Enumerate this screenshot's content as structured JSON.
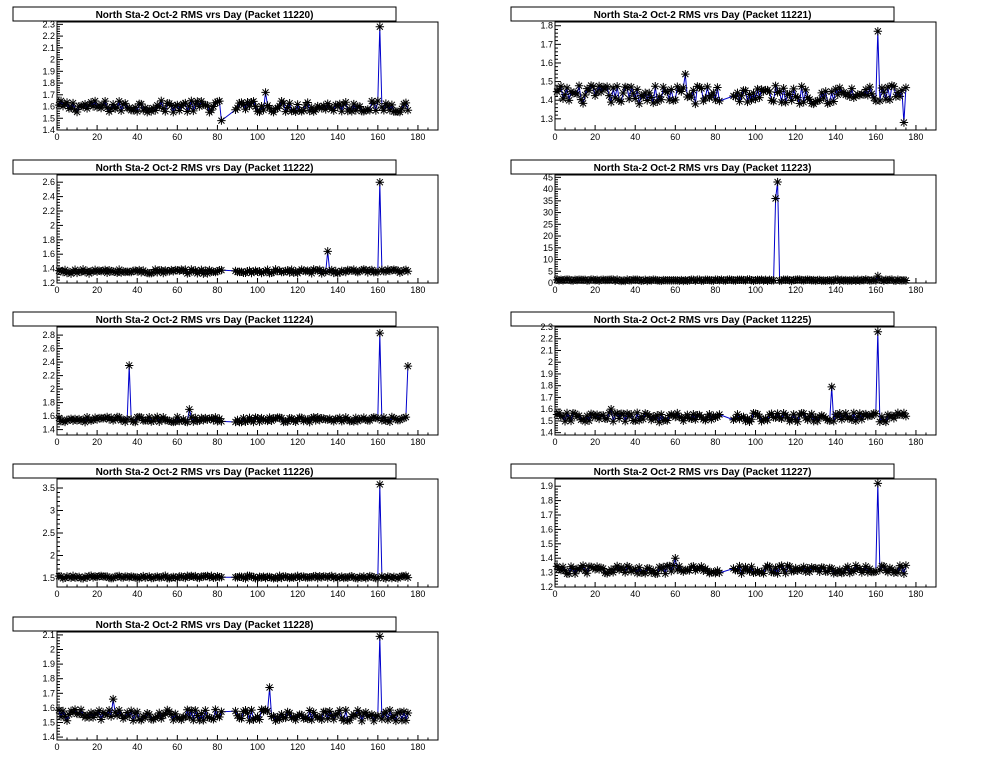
{
  "page": {
    "background": "#ffffff",
    "line_color": "#0000cc",
    "marker_color": "#000000"
  },
  "chart_data": [
    {
      "type": "line",
      "title": "North Sta-2 Oct-2 RMS vrs Day (Packet 11220)",
      "xlim": [
        0,
        190
      ],
      "ylim": [
        1.4,
        2.32
      ],
      "xticks": [
        0,
        20,
        40,
        60,
        80,
        100,
        120,
        140,
        160,
        180
      ],
      "yticks": [
        1.4,
        1.5,
        1.6,
        1.7,
        1.8,
        1.9,
        2,
        2.1,
        2.2,
        2.3
      ],
      "ytick_labels": [
        "1.4",
        "1.5",
        "1.6",
        "1.7",
        "1.8",
        "1.9",
        "2",
        "2.1",
        "2.2",
        "2.3"
      ],
      "series": [
        {
          "baseline": 1.6,
          "noise": 0.05,
          "spikes": [
            {
              "x": 161,
              "y": 2.28
            },
            {
              "x": 82,
              "y": 1.48
            },
            {
              "x": 104,
              "y": 1.72
            }
          ]
        }
      ]
    },
    {
      "type": "line",
      "title": "North Sta-2 Oct-2 RMS vrs Day (Packet 11221)",
      "xlim": [
        0,
        190
      ],
      "ylim": [
        1.24,
        1.82
      ],
      "xticks": [
        0,
        20,
        40,
        60,
        80,
        100,
        120,
        140,
        160,
        180
      ],
      "yticks": [
        1.3,
        1.4,
        1.5,
        1.6,
        1.7,
        1.8
      ],
      "ytick_labels": [
        "1.3",
        "1.4",
        "1.5",
        "1.6",
        "1.7",
        "1.8"
      ],
      "series": [
        {
          "baseline": 1.43,
          "noise": 0.05,
          "spikes": [
            {
              "x": 161,
              "y": 1.77
            },
            {
              "x": 174,
              "y": 1.28
            },
            {
              "x": 176,
              "y": 1.51
            },
            {
              "x": 65,
              "y": 1.54
            }
          ]
        }
      ]
    },
    {
      "type": "line",
      "title": "North Sta-2 Oct-2 RMS vrs Day (Packet 11222)",
      "xlim": [
        0,
        190
      ],
      "ylim": [
        1.2,
        2.7
      ],
      "xticks": [
        0,
        20,
        40,
        60,
        80,
        100,
        120,
        140,
        160,
        180
      ],
      "yticks": [
        1.2,
        1.4,
        1.6,
        1.8,
        2,
        2.2,
        2.4,
        2.6
      ],
      "ytick_labels": [
        "1.2",
        "1.4",
        "1.6",
        "1.8",
        "2",
        "2.2",
        "2.4",
        "2.6"
      ],
      "series": [
        {
          "baseline": 1.36,
          "noise": 0.03,
          "spikes": [
            {
              "x": 161,
              "y": 2.6
            },
            {
              "x": 135,
              "y": 1.64
            }
          ]
        }
      ]
    },
    {
      "type": "line",
      "title": "North Sta-2 Oct-2 RMS vrs Day (Packet 11223)",
      "xlim": [
        0,
        190
      ],
      "ylim": [
        0,
        46
      ],
      "xticks": [
        0,
        20,
        40,
        60,
        80,
        100,
        120,
        140,
        160,
        180
      ],
      "yticks": [
        0,
        5,
        10,
        15,
        20,
        25,
        30,
        35,
        40,
        45
      ],
      "ytick_labels": [
        "0",
        "5",
        "10",
        "15",
        "20",
        "25",
        "30",
        "35",
        "40",
        "45"
      ],
      "series": [
        {
          "baseline": 1.2,
          "noise": 0.3,
          "spikes": [
            {
              "x": 110,
              "y": 36
            },
            {
              "x": 111,
              "y": 43
            },
            {
              "x": 161,
              "y": 3
            }
          ]
        }
      ]
    },
    {
      "type": "line",
      "title": "North Sta-2 Oct-2 RMS vrs Day (Packet 11224)",
      "xlim": [
        0,
        190
      ],
      "ylim": [
        1.32,
        2.92
      ],
      "xticks": [
        0,
        20,
        40,
        60,
        80,
        100,
        120,
        140,
        160,
        180
      ],
      "yticks": [
        1.4,
        1.6,
        1.8,
        2,
        2.2,
        2.4,
        2.6,
        2.8
      ],
      "ytick_labels": [
        "1.4",
        "1.6",
        "1.8",
        "2",
        "2.2",
        "2.4",
        "2.6",
        "2.8"
      ],
      "series": [
        {
          "baseline": 1.55,
          "noise": 0.04,
          "spikes": [
            {
              "x": 36,
              "y": 2.35
            },
            {
              "x": 161,
              "y": 2.83
            },
            {
              "x": 175,
              "y": 2.34
            },
            {
              "x": 66,
              "y": 1.7
            }
          ]
        }
      ]
    },
    {
      "type": "line",
      "title": "North Sta-2 Oct-2 RMS vrs Day (Packet 11225)",
      "xlim": [
        0,
        190
      ],
      "ylim": [
        1.38,
        2.3
      ],
      "xticks": [
        0,
        20,
        40,
        60,
        80,
        100,
        120,
        140,
        160,
        180
      ],
      "yticks": [
        1.4,
        1.5,
        1.6,
        1.7,
        1.8,
        1.9,
        2,
        2.1,
        2.2,
        2.3
      ],
      "ytick_labels": [
        "1.4",
        "1.5",
        "1.6",
        "1.7",
        "1.8",
        "1.9",
        "2",
        "2.1",
        "2.2",
        "2.3"
      ],
      "series": [
        {
          "baseline": 1.53,
          "noise": 0.04,
          "spikes": [
            {
              "x": 161,
              "y": 2.26
            },
            {
              "x": 138,
              "y": 1.79
            },
            {
              "x": 28,
              "y": 1.6
            }
          ]
        }
      ]
    },
    {
      "type": "line",
      "title": "North Sta-2 Oct-2 RMS vrs Day (Packet 11226)",
      "xlim": [
        0,
        190
      ],
      "ylim": [
        1.3,
        3.7
      ],
      "xticks": [
        0,
        20,
        40,
        60,
        80,
        100,
        120,
        140,
        160,
        180
      ],
      "yticks": [
        1.5,
        2,
        2.5,
        3,
        3.5
      ],
      "ytick_labels": [
        "1.5",
        "2",
        "2.5",
        "3",
        "3.5"
      ],
      "series": [
        {
          "baseline": 1.52,
          "noise": 0.03,
          "spikes": [
            {
              "x": 161,
              "y": 3.58
            }
          ]
        }
      ]
    },
    {
      "type": "line",
      "title": "North Sta-2 Oct-2 RMS vrs Day (Packet 11227)",
      "xlim": [
        0,
        190
      ],
      "ylim": [
        1.2,
        1.95
      ],
      "xticks": [
        0,
        20,
        40,
        60,
        80,
        100,
        120,
        140,
        160,
        180
      ],
      "yticks": [
        1.2,
        1.3,
        1.4,
        1.5,
        1.6,
        1.7,
        1.8,
        1.9
      ],
      "ytick_labels": [
        "1.2",
        "1.3",
        "1.4",
        "1.5",
        "1.6",
        "1.7",
        "1.8",
        "1.9"
      ],
      "series": [
        {
          "baseline": 1.32,
          "noise": 0.03,
          "spikes": [
            {
              "x": 161,
              "y": 1.92
            },
            {
              "x": 60,
              "y": 1.4
            }
          ]
        }
      ]
    },
    {
      "type": "line",
      "title": "North Sta-2 Oct-2 RMS vrs Day (Packet 11228)",
      "xlim": [
        0,
        190
      ],
      "ylim": [
        1.38,
        2.12
      ],
      "xticks": [
        0,
        20,
        40,
        60,
        80,
        100,
        120,
        140,
        160,
        180
      ],
      "yticks": [
        1.4,
        1.5,
        1.6,
        1.7,
        1.8,
        1.9,
        2,
        2.1
      ],
      "ytick_labels": [
        "1.4",
        "1.5",
        "1.6",
        "1.7",
        "1.8",
        "1.9",
        "2",
        "2.1"
      ],
      "series": [
        {
          "baseline": 1.55,
          "noise": 0.04,
          "spikes": [
            {
              "x": 161,
              "y": 2.09
            },
            {
              "x": 106,
              "y": 1.74
            },
            {
              "x": 28,
              "y": 1.66
            }
          ]
        }
      ]
    }
  ]
}
